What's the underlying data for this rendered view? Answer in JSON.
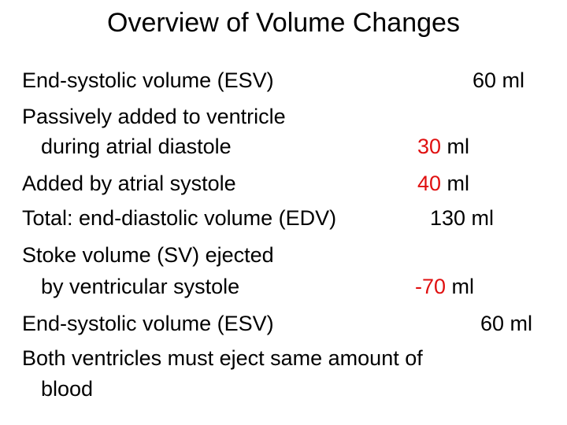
{
  "title": "Overview of Volume Changes",
  "rows": [
    {
      "label": "End-systolic volume (ESV)",
      "value_num": "",
      "value_rest": "60 ml"
    },
    {
      "label": "Passively added to ventricle",
      "label_cont": "during atrial diastole",
      "value_num": "30",
      "value_rest": " ml"
    },
    {
      "label": "Added by atrial systole",
      "value_num": "40",
      "value_rest": " ml"
    },
    {
      "label": "Total: end-diastolic volume (EDV)",
      "value_num": "",
      "value_rest": "130 ml"
    },
    {
      "label": "Stoke volume (SV) ejected",
      "label_cont": "by ventricular systole",
      "value_num": "-70",
      "value_rest": " ml"
    },
    {
      "label": "End-systolic volume (ESV)",
      "value_num": "",
      "value_rest": "60 ml"
    }
  ],
  "note": {
    "line1": "Both ventricles must eject same amount of",
    "line2": "blood"
  },
  "colors": {
    "highlight": "#e01010",
    "text": "#000000",
    "background": "#ffffff"
  }
}
